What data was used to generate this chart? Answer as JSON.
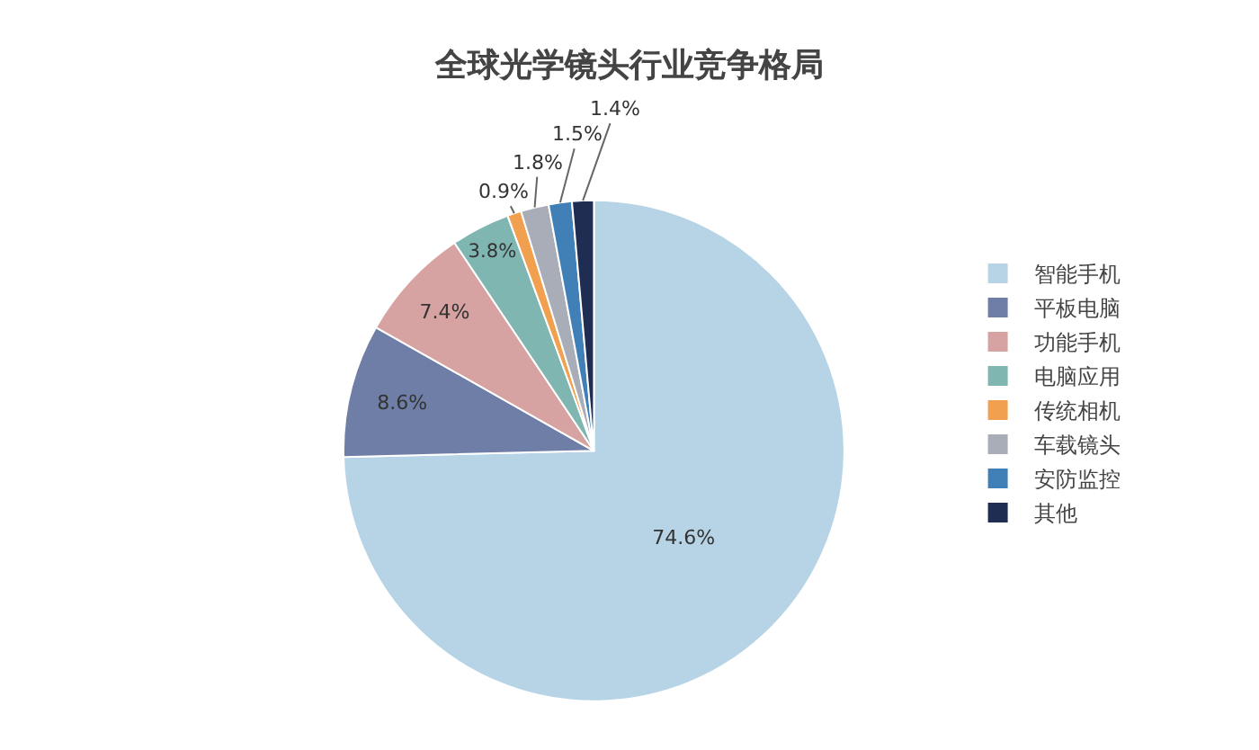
{
  "chart_data": {
    "type": "pie",
    "title": "全球光学镜头行业竞争格局",
    "categories": [
      "智能手机",
      "平板电脑",
      "功能手机",
      "电脑应用",
      "传统相机",
      "车载镜头",
      "安防监控",
      "其他"
    ],
    "values": [
      74.6,
      8.6,
      7.4,
      3.8,
      0.9,
      1.8,
      1.5,
      1.4
    ],
    "value_labels": [
      "74.6%",
      "8.6%",
      "7.4%",
      "3.8%",
      "0.9%",
      "1.8%",
      "1.5%",
      "1.4%"
    ],
    "colors": [
      "#b7d4e6",
      "#6f7ea6",
      "#d6a3a2",
      "#80b6b1",
      "#f0a04e",
      "#a9adb8",
      "#4180b7",
      "#1f2d52"
    ],
    "legend": "right"
  }
}
